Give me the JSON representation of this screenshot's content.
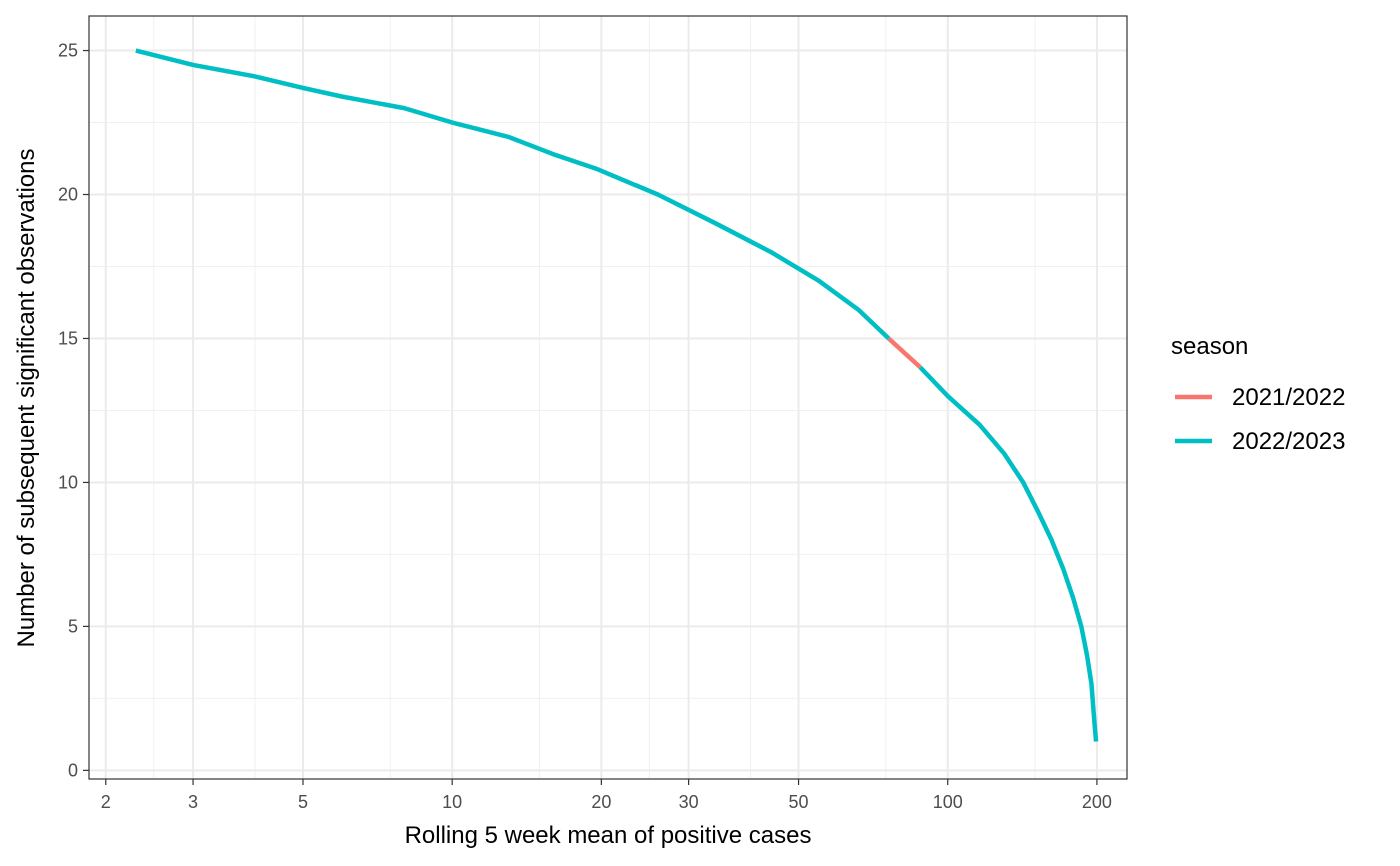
{
  "chart_data": {
    "type": "line",
    "xlabel": "Rolling 5 week mean of positive cases",
    "ylabel": "Number of subsequent significant observations",
    "x_scale": "log",
    "xlim": [
      1.85,
      230
    ],
    "ylim": [
      -0.3,
      26.2
    ],
    "x_major_ticks": [
      2,
      3,
      5,
      10,
      20,
      30,
      50,
      100,
      200
    ],
    "x_minor_ticks": [
      2.5,
      4,
      7.5,
      15,
      25,
      40,
      75,
      150
    ],
    "y_major_ticks": [
      0,
      5,
      10,
      15,
      20,
      25
    ],
    "y_minor_ticks": [
      2.5,
      7.5,
      12.5,
      17.5,
      22.5
    ],
    "grid": true,
    "legend": {
      "title": "season",
      "position": "right"
    },
    "series": [
      {
        "name": "2021/2022",
        "color": "#F8766D",
        "x": [
          76,
          88
        ],
        "y": [
          15,
          14
        ]
      },
      {
        "name": "2022/2023",
        "color": "#00BFC4",
        "segments": [
          {
            "x": [
              2.3,
              3,
              4,
              5,
              6,
              8,
              10,
              13,
              16,
              19.5,
              26,
              34,
              44,
              55,
              66,
              76
            ],
            "y": [
              25,
              24.5,
              24.1,
              23.7,
              23.4,
              23,
              22.5,
              22,
              21.4,
              20.9,
              20,
              19,
              18,
              17,
              16,
              15
            ]
          },
          {
            "x": [
              88,
              100,
              116,
              130,
              142,
              152,
              162,
              171,
              179,
              186,
              191,
              195,
              197,
              198.5,
              199.2
            ],
            "y": [
              14,
              13,
              12,
              11,
              10,
              9,
              8,
              7,
              6,
              5,
              4,
              3,
              2,
              1.3,
              1
            ]
          }
        ]
      }
    ]
  }
}
